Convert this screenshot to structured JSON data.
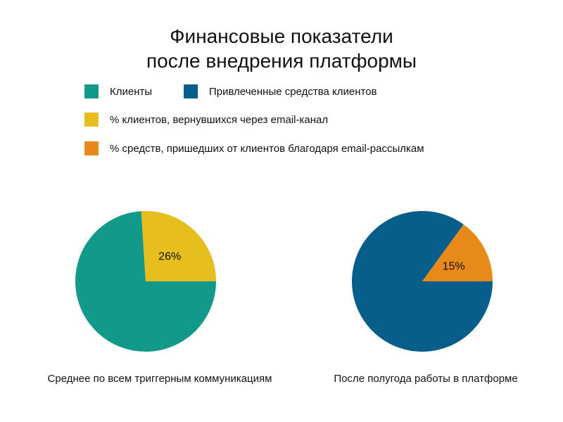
{
  "chart_data": {
    "type": "pie",
    "title": [
      "Финансовые показатели",
      "после внедрения платформы"
    ],
    "legend": [
      {
        "label": "Клиенты",
        "color": "#13998a"
      },
      {
        "label": "Привлеченные средства клиентов",
        "color": "#085e8a"
      },
      {
        "label": "% клиентов, вернувшихся через email-канал",
        "color": "#e6be1e"
      },
      {
        "label": "% средств, пришедших от клиентов благодаря email-рассылкам",
        "color": "#e88a1a"
      }
    ],
    "charts": [
      {
        "caption": "Среднее по всем триггерным коммуникациям",
        "slices": [
          {
            "label": "Клиенты",
            "value": 74,
            "color": "#13998a",
            "data_label": ""
          },
          {
            "label": "% клиентов, вернувшихся через email-канал",
            "value": 26,
            "color": "#e6be1e",
            "data_label": "26%"
          }
        ]
      },
      {
        "caption": "После полугода работы в платформе",
        "slices": [
          {
            "label": "Привлеченные средства клиентов",
            "value": 85,
            "color": "#085e8a",
            "data_label": ""
          },
          {
            "label": "% средств, пришедших от клиентов благодаря email-рассылкам",
            "value": 15,
            "color": "#e88a1a",
            "data_label": "15%"
          }
        ]
      }
    ]
  }
}
